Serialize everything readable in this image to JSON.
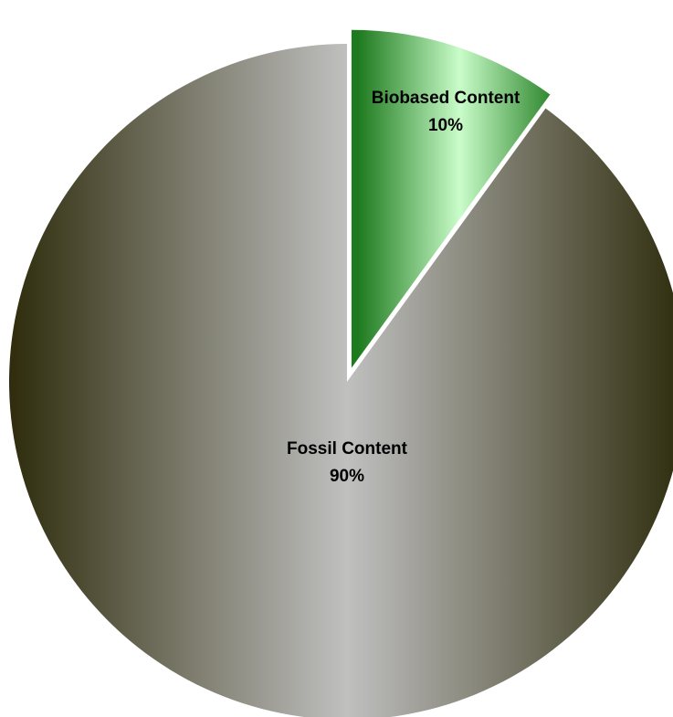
{
  "chart_data": {
    "type": "pie",
    "categories": [
      "Biobased Content",
      "Fossil Content"
    ],
    "values": [
      10,
      90
    ],
    "value_labels": [
      "10%",
      "90%"
    ],
    "exploded": [
      "Biobased Content"
    ],
    "colors": {
      "Biobased Content": {
        "edge": "#1e7a1e",
        "center": "#c9fcc9"
      },
      "Fossil Content": {
        "edge": "#2e2c0c",
        "center": "#c0c0c0"
      }
    },
    "legend": "none",
    "title": ""
  }
}
